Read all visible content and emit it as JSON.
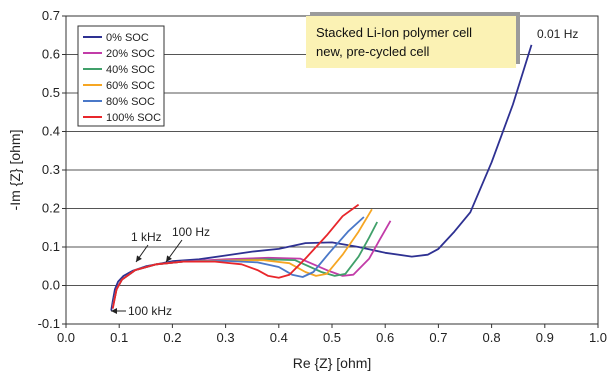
{
  "chart_data": {
    "type": "line",
    "title": "",
    "xlabel": "Re {Z} [ohm]",
    "ylabel": "-Im {Z} [ohm]",
    "xlim": [
      0.0,
      1.0
    ],
    "ylim": [
      -0.1,
      0.7
    ],
    "x_ticks": [
      "0.0",
      "0.1",
      "0.2",
      "0.3",
      "0.4",
      "0.5",
      "0.6",
      "0.7",
      "0.8",
      "0.9",
      "1.0"
    ],
    "y_ticks": [
      "-0.1",
      "0.0",
      "0.1",
      "0.2",
      "0.3",
      "0.4",
      "0.5",
      "0.6",
      "0.7"
    ],
    "grid": "horizontal",
    "legend_position": "top-left",
    "note_box": {
      "line1": "Stacked Li-Ion polymer cell",
      "line2": "new, pre-cycled cell",
      "background": "#fbf2b4",
      "shadow": "#9b9b9b"
    },
    "annotations": {
      "f_001hz": "0.01 Hz",
      "f_100hz": "100 Hz",
      "f_1khz": "1 kHz",
      "f_100khz": "100 kHz"
    },
    "series": [
      {
        "name": "0% SOC",
        "color": "#2e3192",
        "points": [
          [
            0.085,
            -0.065
          ],
          [
            0.088,
            -0.04
          ],
          [
            0.092,
            -0.01
          ],
          [
            0.098,
            0.01
          ],
          [
            0.108,
            0.025
          ],
          [
            0.125,
            0.038
          ],
          [
            0.15,
            0.05
          ],
          [
            0.18,
            0.058
          ],
          [
            0.2,
            0.063
          ],
          [
            0.25,
            0.068
          ],
          [
            0.3,
            0.078
          ],
          [
            0.35,
            0.088
          ],
          [
            0.4,
            0.095
          ],
          [
            0.45,
            0.11
          ],
          [
            0.5,
            0.112
          ],
          [
            0.55,
            0.1
          ],
          [
            0.6,
            0.085
          ],
          [
            0.65,
            0.075
          ],
          [
            0.68,
            0.08
          ],
          [
            0.7,
            0.095
          ],
          [
            0.73,
            0.14
          ],
          [
            0.76,
            0.19
          ],
          [
            0.8,
            0.32
          ],
          [
            0.84,
            0.47
          ],
          [
            0.875,
            0.625
          ]
        ]
      },
      {
        "name": "20% SOC",
        "color": "#c23ca8",
        "points": [
          [
            0.088,
            -0.055
          ],
          [
            0.095,
            -0.01
          ],
          [
            0.105,
            0.015
          ],
          [
            0.13,
            0.04
          ],
          [
            0.17,
            0.055
          ],
          [
            0.22,
            0.062
          ],
          [
            0.3,
            0.068
          ],
          [
            0.38,
            0.072
          ],
          [
            0.44,
            0.07
          ],
          [
            0.49,
            0.04
          ],
          [
            0.52,
            0.025
          ],
          [
            0.54,
            0.028
          ],
          [
            0.57,
            0.07
          ],
          [
            0.59,
            0.12
          ],
          [
            0.61,
            0.168
          ]
        ]
      },
      {
        "name": "40% SOC",
        "color": "#40a06a",
        "points": [
          [
            0.088,
            -0.055
          ],
          [
            0.095,
            -0.01
          ],
          [
            0.105,
            0.015
          ],
          [
            0.13,
            0.04
          ],
          [
            0.17,
            0.055
          ],
          [
            0.22,
            0.062
          ],
          [
            0.3,
            0.065
          ],
          [
            0.38,
            0.068
          ],
          [
            0.43,
            0.066
          ],
          [
            0.48,
            0.035
          ],
          [
            0.505,
            0.025
          ],
          [
            0.525,
            0.03
          ],
          [
            0.55,
            0.075
          ],
          [
            0.57,
            0.125
          ],
          [
            0.585,
            0.165
          ]
        ]
      },
      {
        "name": "60% SOC",
        "color": "#f6a623",
        "points": [
          [
            0.088,
            -0.055
          ],
          [
            0.095,
            -0.01
          ],
          [
            0.105,
            0.015
          ],
          [
            0.13,
            0.04
          ],
          [
            0.17,
            0.055
          ],
          [
            0.22,
            0.062
          ],
          [
            0.3,
            0.065
          ],
          [
            0.37,
            0.066
          ],
          [
            0.42,
            0.058
          ],
          [
            0.45,
            0.035
          ],
          [
            0.47,
            0.025
          ],
          [
            0.49,
            0.03
          ],
          [
            0.52,
            0.08
          ],
          [
            0.55,
            0.14
          ],
          [
            0.575,
            0.198
          ]
        ]
      },
      {
        "name": "80% SOC",
        "color": "#4a78c8",
        "points": [
          [
            0.088,
            -0.055
          ],
          [
            0.095,
            -0.01
          ],
          [
            0.105,
            0.015
          ],
          [
            0.13,
            0.04
          ],
          [
            0.17,
            0.055
          ],
          [
            0.22,
            0.062
          ],
          [
            0.3,
            0.064
          ],
          [
            0.36,
            0.06
          ],
          [
            0.4,
            0.048
          ],
          [
            0.425,
            0.028
          ],
          [
            0.445,
            0.022
          ],
          [
            0.465,
            0.035
          ],
          [
            0.495,
            0.085
          ],
          [
            0.53,
            0.14
          ],
          [
            0.56,
            0.178
          ]
        ]
      },
      {
        "name": "100% SOC",
        "color": "#e8262b",
        "points": [
          [
            0.088,
            -0.06
          ],
          [
            0.095,
            -0.01
          ],
          [
            0.105,
            0.015
          ],
          [
            0.13,
            0.04
          ],
          [
            0.17,
            0.055
          ],
          [
            0.22,
            0.062
          ],
          [
            0.28,
            0.062
          ],
          [
            0.33,
            0.055
          ],
          [
            0.36,
            0.04
          ],
          [
            0.38,
            0.025
          ],
          [
            0.4,
            0.02
          ],
          [
            0.42,
            0.028
          ],
          [
            0.45,
            0.07
          ],
          [
            0.49,
            0.13
          ],
          [
            0.52,
            0.18
          ],
          [
            0.55,
            0.21
          ]
        ]
      }
    ]
  }
}
